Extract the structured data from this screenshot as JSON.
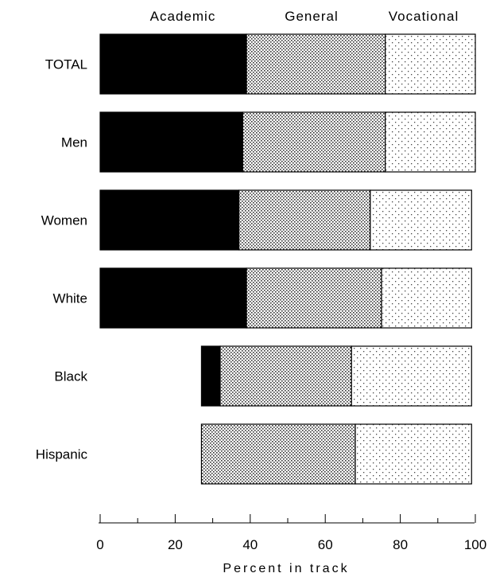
{
  "chart_data": {
    "type": "bar",
    "stacked": true,
    "orientation": "horizontal",
    "title": "",
    "xlabel": "Percent in track",
    "ylabel": "",
    "xlim": [
      0,
      100
    ],
    "x_ticks": [
      "0",
      "20",
      "40",
      "60",
      "80",
      "100"
    ],
    "legend_position": "top",
    "grid": false,
    "categories": [
      "TOTAL",
      "Men",
      "Women",
      "White",
      "Black",
      "Hispanic"
    ],
    "series": [
      {
        "name": "Academic",
        "values": [
          39,
          38,
          37,
          39,
          5,
          0
        ],
        "pattern": "solid",
        "color": "#000000"
      },
      {
        "name": "General",
        "values": [
          37,
          38,
          35,
          36,
          35,
          41
        ],
        "pattern": "dense-dots",
        "color": "#9a9a9a"
      },
      {
        "name": "Vocational",
        "values": [
          24,
          24,
          27,
          24,
          32,
          31
        ],
        "pattern": "sparse-dots",
        "color": "#d0d0d0"
      }
    ],
    "note": "Black and Hispanic bars start near 27 on the axis"
  }
}
